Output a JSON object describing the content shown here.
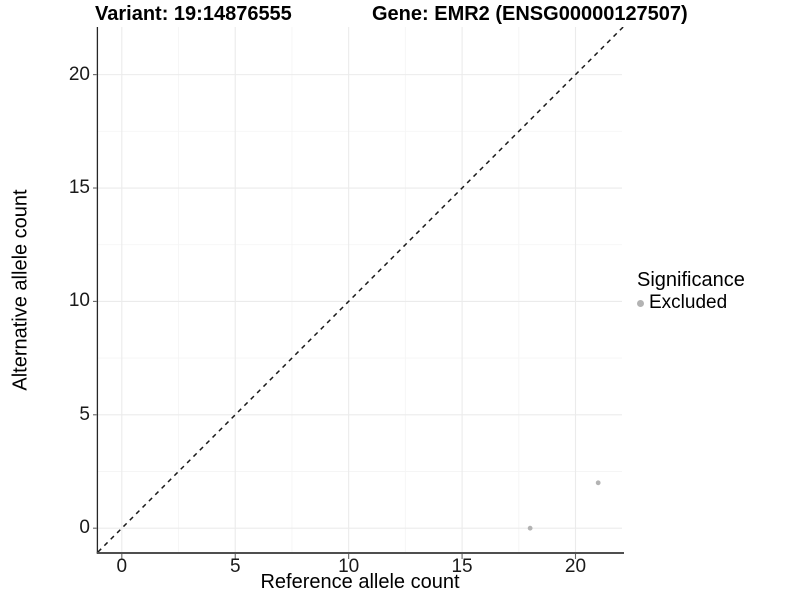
{
  "chart_data": {
    "type": "scatter",
    "title_left": "Variant: 19:14876555",
    "title_right": "Gene: EMR2 (ENSG00000127507)",
    "xlabel": "Reference allele count",
    "ylabel": "Alternative allele count",
    "xlim": [
      -1.05,
      22.05
    ],
    "ylim": [
      -1.05,
      22.1
    ],
    "x_ticks": [
      0,
      5,
      10,
      15,
      20
    ],
    "y_ticks": [
      0,
      5,
      10,
      15,
      20
    ],
    "x_minor": [
      2.5,
      7.5,
      12.5,
      17.5
    ],
    "y_minor": [
      2.5,
      7.5,
      12.5,
      17.5
    ],
    "grid": "on",
    "identity_line": {
      "equation": "y = x",
      "style": "dashed",
      "color": "#1a1a1a"
    },
    "series": [
      {
        "name": "Excluded",
        "color": "#b3b3b3",
        "points": [
          [
            18,
            0
          ],
          [
            21,
            2
          ]
        ]
      }
    ],
    "legend": {
      "title": "Significance",
      "position": "right",
      "entries": [
        {
          "label": "Excluded",
          "color": "#b3b3b3"
        }
      ]
    }
  },
  "colors": {
    "background": "#ffffff",
    "point": "#b3b3b3",
    "axis_line_left": "#262626",
    "axis_line_bottom": "#4f4f4f",
    "tick_mark": "#666666",
    "grid_major": "#ebebeb",
    "grid_minor": "#f5f5f5"
  }
}
